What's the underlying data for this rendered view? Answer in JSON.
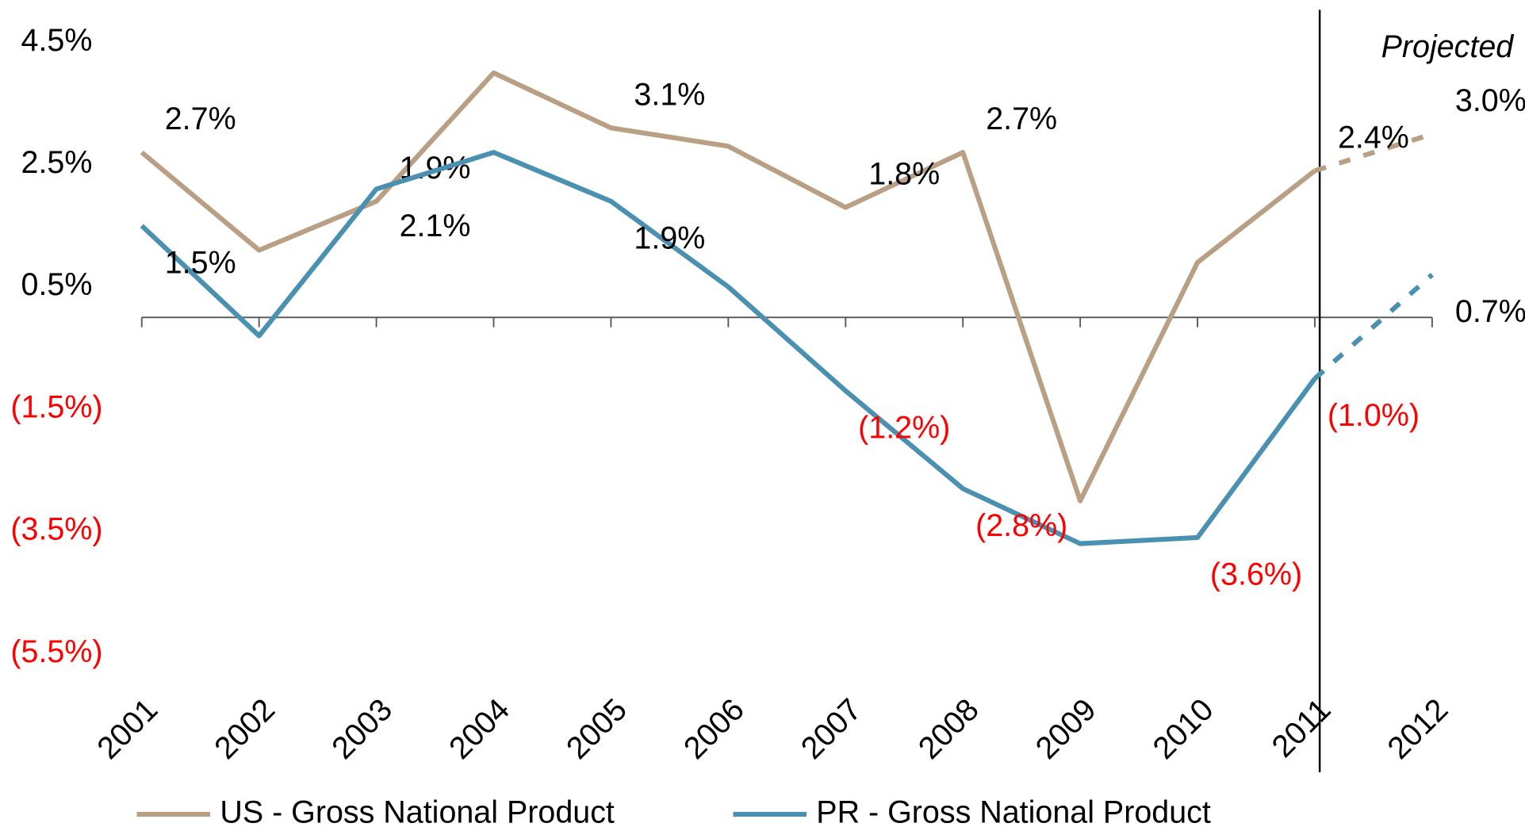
{
  "chart_data": {
    "type": "line",
    "annotation": "Projected",
    "categories": [
      "2001",
      "2002",
      "2003",
      "2004",
      "2005",
      "2006",
      "2007",
      "2008",
      "2009",
      "2010",
      "2011",
      "2012"
    ],
    "series": [
      {
        "name": "US - Gross National Product",
        "color": "#b9a084",
        "values": [
          2.7,
          1.1,
          1.9,
          4.0,
          3.1,
          2.8,
          1.8,
          2.7,
          -3.0,
          0.9,
          2.4,
          3.0
        ],
        "value_labels": [
          "2.7%",
          null,
          "1.9%",
          null,
          "3.1%",
          null,
          "1.8%",
          "2.7%",
          null,
          null,
          "2.4%",
          "3.0%"
        ]
      },
      {
        "name": "PR - Gross National Product",
        "color": "#4a90b0",
        "values": [
          1.5,
          -0.3,
          2.1,
          2.7,
          1.9,
          0.5,
          -1.2,
          -2.8,
          -3.7,
          -3.6,
          -1.0,
          0.7
        ],
        "value_labels": [
          "1.5%",
          null,
          "2.1%",
          null,
          "1.9%",
          null,
          "(1.2%)",
          "(2.8%)",
          null,
          "(3.6%)",
          "(1.0%)",
          "0.7%"
        ]
      }
    ],
    "ylim": [
      -6,
      5
    ],
    "yticks": [
      {
        "value": 4.5,
        "label": "4.5%"
      },
      {
        "value": 2.5,
        "label": "2.5%"
      },
      {
        "value": 0.5,
        "label": "0.5%"
      },
      {
        "value": -1.5,
        "label": "(1.5%)"
      },
      {
        "value": -3.5,
        "label": "(3.5%)"
      },
      {
        "value": -5.5,
        "label": "(5.5%)"
      }
    ],
    "negative_label_color": "#ff0000",
    "projected_from_index": 10,
    "legend": "bottom"
  }
}
